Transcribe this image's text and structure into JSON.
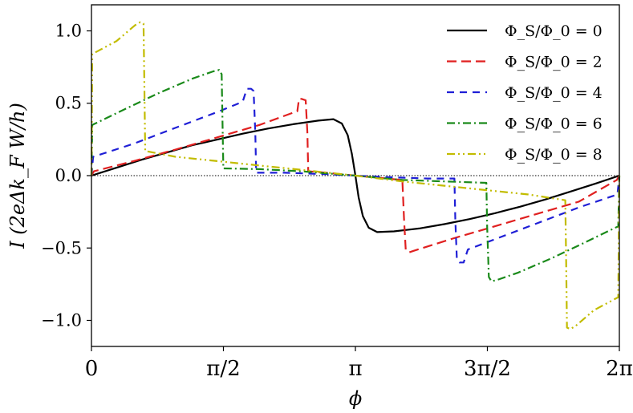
{
  "chart_data": {
    "type": "line",
    "title": "",
    "xlabel": "ϕ",
    "ylabel": "I (2eΔk_F W/h)",
    "xlim": [
      0,
      6.2832
    ],
    "ylim": [
      -1.18,
      1.18
    ],
    "grid": false,
    "legend_position": "top-right",
    "x_ticks": [
      {
        "value": 0,
        "label": "0"
      },
      {
        "value": 1.5708,
        "label": "π/2"
      },
      {
        "value": 3.1416,
        "label": "π"
      },
      {
        "value": 4.7124,
        "label": "3π/2"
      },
      {
        "value": 6.2832,
        "label": "2π"
      }
    ],
    "y_ticks": [
      {
        "value": -1.0,
        "label": "−1.0"
      },
      {
        "value": -0.5,
        "label": "−0.5"
      },
      {
        "value": 0.0,
        "label": "0.0"
      },
      {
        "value": 0.5,
        "label": "0.5"
      },
      {
        "value": 1.0,
        "label": "1.0"
      }
    ],
    "zero_line": true,
    "series": [
      {
        "name": "Φ_S/Φ_0 = 0",
        "color": "#000000",
        "dash": "solid",
        "points": [
          [
            0.0,
            0.0
          ],
          [
            0.3,
            0.055
          ],
          [
            0.6,
            0.11
          ],
          [
            0.9,
            0.16
          ],
          [
            1.2,
            0.21
          ],
          [
            1.5,
            0.25
          ],
          [
            1.8,
            0.29
          ],
          [
            2.1,
            0.325
          ],
          [
            2.4,
            0.355
          ],
          [
            2.7,
            0.38
          ],
          [
            2.88,
            0.39
          ],
          [
            2.98,
            0.36
          ],
          [
            3.05,
            0.28
          ],
          [
            3.1,
            0.15
          ],
          [
            3.1416,
            0.0
          ],
          [
            3.18,
            -0.15
          ],
          [
            3.23,
            -0.28
          ],
          [
            3.3,
            -0.36
          ],
          [
            3.4,
            -0.39
          ],
          [
            3.6,
            -0.385
          ],
          [
            3.9,
            -0.365
          ],
          [
            4.2,
            -0.335
          ],
          [
            4.5,
            -0.3
          ],
          [
            4.8,
            -0.26
          ],
          [
            5.1,
            -0.215
          ],
          [
            5.4,
            -0.165
          ],
          [
            5.7,
            -0.11
          ],
          [
            6.0,
            -0.055
          ],
          [
            6.2832,
            0.0
          ]
        ]
      },
      {
        "name": "Φ_S/Φ_0 = 2",
        "color": "#e02020",
        "dash": "12,6",
        "points": [
          [
            0.0,
            0.0
          ],
          [
            0.03,
            0.03
          ],
          [
            0.5,
            0.1
          ],
          [
            1.0,
            0.18
          ],
          [
            1.5,
            0.265
          ],
          [
            2.0,
            0.35
          ],
          [
            2.4,
            0.435
          ],
          [
            2.45,
            0.445
          ],
          [
            2.47,
            0.53
          ],
          [
            2.5,
            0.53
          ],
          [
            2.55,
            0.52
          ],
          [
            2.57,
            0.3
          ],
          [
            2.58,
            0.03
          ],
          [
            2.7,
            0.025
          ],
          [
            3.1416,
            0.0
          ],
          [
            3.6,
            -0.025
          ],
          [
            3.7,
            -0.03
          ],
          [
            3.72,
            -0.3
          ],
          [
            3.74,
            -0.51
          ],
          [
            3.78,
            -0.53
          ],
          [
            3.83,
            -0.52
          ],
          [
            4.3,
            -0.435
          ],
          [
            4.8,
            -0.35
          ],
          [
            5.3,
            -0.265
          ],
          [
            5.8,
            -0.18
          ],
          [
            6.253,
            -0.03
          ],
          [
            6.2832,
            0.0
          ]
        ]
      },
      {
        "name": "Φ_S/Φ_0 = 4",
        "color": "#1f1fd6",
        "dash": "9,7",
        "points": [
          [
            0.0,
            0.0
          ],
          [
            0.02,
            0.13
          ],
          [
            0.5,
            0.22
          ],
          [
            1.0,
            0.33
          ],
          [
            1.5,
            0.44
          ],
          [
            1.8,
            0.51
          ],
          [
            1.85,
            0.6
          ],
          [
            1.9,
            0.6
          ],
          [
            1.93,
            0.585
          ],
          [
            1.95,
            0.3
          ],
          [
            1.96,
            0.02
          ],
          [
            2.3,
            0.02
          ],
          [
            2.8,
            0.01
          ],
          [
            3.1416,
            0.0
          ],
          [
            3.5,
            -0.01
          ],
          [
            4.0,
            -0.02
          ],
          [
            4.32,
            -0.02
          ],
          [
            4.33,
            -0.3
          ],
          [
            4.35,
            -0.585
          ],
          [
            4.38,
            -0.6
          ],
          [
            4.43,
            -0.6
          ],
          [
            4.48,
            -0.51
          ],
          [
            4.8,
            -0.44
          ],
          [
            5.3,
            -0.33
          ],
          [
            5.8,
            -0.22
          ],
          [
            6.26,
            -0.13
          ],
          [
            6.2832,
            0.0
          ]
        ]
      },
      {
        "name": "Φ_S/Φ_0 = 6",
        "color": "#1a8a1a",
        "dash": "10,4,2,4",
        "points": [
          [
            0.0,
            0.0
          ],
          [
            0.01,
            0.35
          ],
          [
            0.4,
            0.46
          ],
          [
            0.8,
            0.57
          ],
          [
            1.2,
            0.67
          ],
          [
            1.45,
            0.72
          ],
          [
            1.52,
            0.73
          ],
          [
            1.55,
            0.7
          ],
          [
            1.56,
            0.35
          ],
          [
            1.57,
            0.05
          ],
          [
            2.0,
            0.045
          ],
          [
            2.5,
            0.03
          ],
          [
            3.1416,
            0.0
          ],
          [
            3.7,
            -0.03
          ],
          [
            4.2,
            -0.04
          ],
          [
            4.7,
            -0.05
          ],
          [
            4.71,
            -0.35
          ],
          [
            4.73,
            -0.7
          ],
          [
            4.76,
            -0.73
          ],
          [
            4.83,
            -0.72
          ],
          [
            5.08,
            -0.67
          ],
          [
            5.48,
            -0.57
          ],
          [
            5.88,
            -0.46
          ],
          [
            6.27,
            -0.35
          ],
          [
            6.2832,
            0.0
          ]
        ]
      },
      {
        "name": "Φ_S/Φ_0 = 8",
        "color": "#c2bc00",
        "dash": "10,4,2,4,2,4",
        "points": [
          [
            0.0,
            0.0
          ],
          [
            0.01,
            0.84
          ],
          [
            0.3,
            0.93
          ],
          [
            0.52,
            1.04
          ],
          [
            0.58,
            1.06
          ],
          [
            0.62,
            1.05
          ],
          [
            0.63,
            0.6
          ],
          [
            0.64,
            0.17
          ],
          [
            1.0,
            0.13
          ],
          [
            1.5,
            0.1
          ],
          [
            2.0,
            0.07
          ],
          [
            2.5,
            0.04
          ],
          [
            3.1416,
            0.0
          ],
          [
            3.7,
            -0.04
          ],
          [
            4.2,
            -0.07
          ],
          [
            4.7,
            -0.1
          ],
          [
            5.2,
            -0.13
          ],
          [
            5.64,
            -0.17
          ],
          [
            5.65,
            -0.6
          ],
          [
            5.66,
            -1.05
          ],
          [
            5.7,
            -1.06
          ],
          [
            5.76,
            -1.04
          ],
          [
            5.98,
            -0.93
          ],
          [
            6.27,
            -0.84
          ],
          [
            6.2832,
            0.0
          ]
        ]
      }
    ]
  }
}
